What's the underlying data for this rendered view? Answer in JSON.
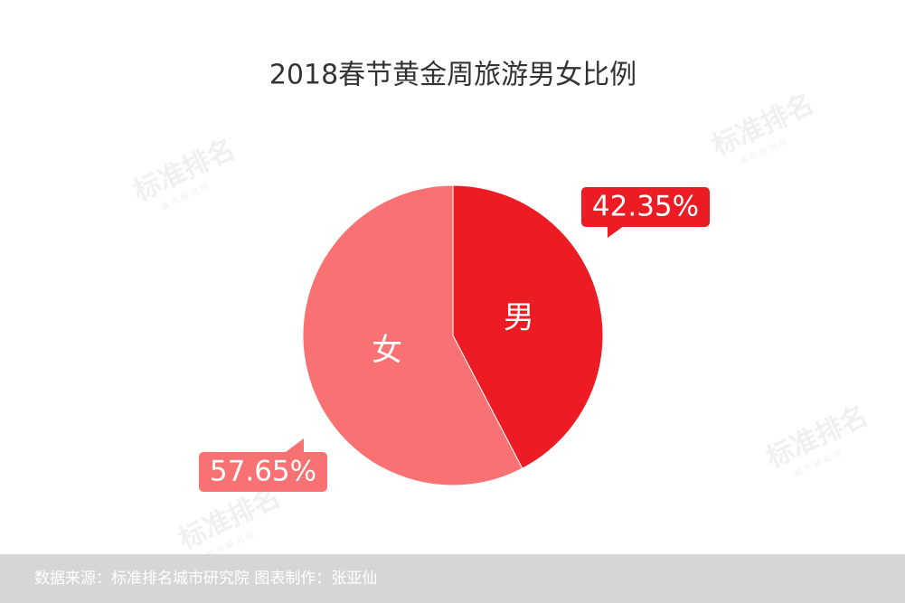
{
  "chart_data": {
    "type": "pie",
    "title": "2018春节黄金周旅游男女比例",
    "categories": [
      "男",
      "女"
    ],
    "values": [
      42.35,
      57.65
    ],
    "value_labels": [
      "42.35%",
      "57.65%"
    ],
    "colors": [
      "#ed1c24",
      "#f87273"
    ],
    "source": "数据来源：标准排名城市研究院  图表制作：张亚仙",
    "watermark": {
      "name": "标准排名",
      "sub": "城 市 研 究 院"
    }
  }
}
